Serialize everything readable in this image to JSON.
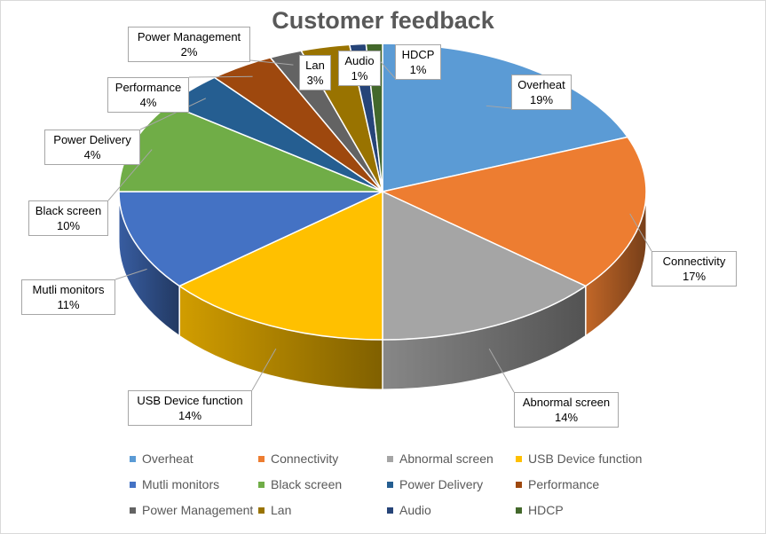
{
  "chart_data": {
    "type": "pie",
    "title": "Customer feedback",
    "legend_position": "bottom",
    "slices": [
      {
        "label": "Overheat",
        "value": 19,
        "percent_label": "19%",
        "color": "#5B9BD5"
      },
      {
        "label": "Connectivity",
        "value": 17,
        "percent_label": "17%",
        "color": "#ED7D31"
      },
      {
        "label": "Abnormal screen",
        "value": 14,
        "percent_label": "14%",
        "color": "#A5A5A5"
      },
      {
        "label": "USB Device function",
        "value": 14,
        "percent_label": "14%",
        "color": "#FFC000"
      },
      {
        "label": "Mutli monitors",
        "value": 11,
        "percent_label": "11%",
        "color": "#4472C4"
      },
      {
        "label": "Black screen",
        "value": 10,
        "percent_label": "10%",
        "color": "#70AD47"
      },
      {
        "label": "Power Delivery",
        "value": 4,
        "percent_label": "4%",
        "color": "#255E91"
      },
      {
        "label": "Performance",
        "value": 4,
        "percent_label": "4%",
        "color": "#9E480E"
      },
      {
        "label": "Power Management",
        "value": 2,
        "percent_label": "2%",
        "color": "#636363"
      },
      {
        "label": "Lan",
        "value": 3,
        "percent_label": "3%",
        "color": "#997300"
      },
      {
        "label": "Audio",
        "value": 1,
        "percent_label": "1%",
        "color": "#264478"
      },
      {
        "label": "HDCP",
        "value": 1,
        "percent_label": "1%",
        "color": "#43682B"
      }
    ]
  }
}
